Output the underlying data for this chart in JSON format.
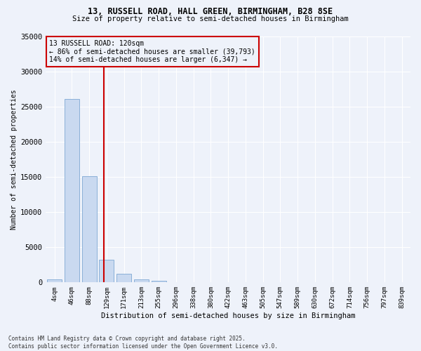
{
  "title1": "13, RUSSELL ROAD, HALL GREEN, BIRMINGHAM, B28 8SE",
  "title2": "Size of property relative to semi-detached houses in Birmingham",
  "xlabel": "Distribution of semi-detached houses by size in Birmingham",
  "ylabel": "Number of semi-detached properties",
  "footnote": "Contains HM Land Registry data © Crown copyright and database right 2025.\nContains public sector information licensed under the Open Government Licence v3.0.",
  "bar_labels": [
    "4sqm",
    "46sqm",
    "88sqm",
    "129sqm",
    "171sqm",
    "213sqm",
    "255sqm",
    "296sqm",
    "338sqm",
    "380sqm",
    "422sqm",
    "463sqm",
    "505sqm",
    "547sqm",
    "589sqm",
    "630sqm",
    "672sqm",
    "714sqm",
    "756sqm",
    "797sqm",
    "839sqm"
  ],
  "bar_values": [
    400,
    26100,
    15100,
    3200,
    1200,
    450,
    200,
    50,
    0,
    0,
    0,
    0,
    0,
    0,
    0,
    0,
    0,
    0,
    0,
    0,
    0
  ],
  "bar_color": "#c9d9f0",
  "bar_edge_color": "#8ab0d8",
  "property_line_x": 2.85,
  "annotation_text": "13 RUSSELL ROAD: 120sqm\n← 86% of semi-detached houses are smaller (39,793)\n14% of semi-detached houses are larger (6,347) →",
  "vline_color": "#cc0000",
  "background_color": "#eef2fa",
  "ylim": [
    0,
    35000
  ],
  "yticks": [
    0,
    5000,
    10000,
    15000,
    20000,
    25000,
    30000,
    35000
  ],
  "ytick_labels": [
    "0",
    "5000",
    "10000",
    "15000",
    "20000",
    "25000",
    "30000",
    "35000"
  ]
}
